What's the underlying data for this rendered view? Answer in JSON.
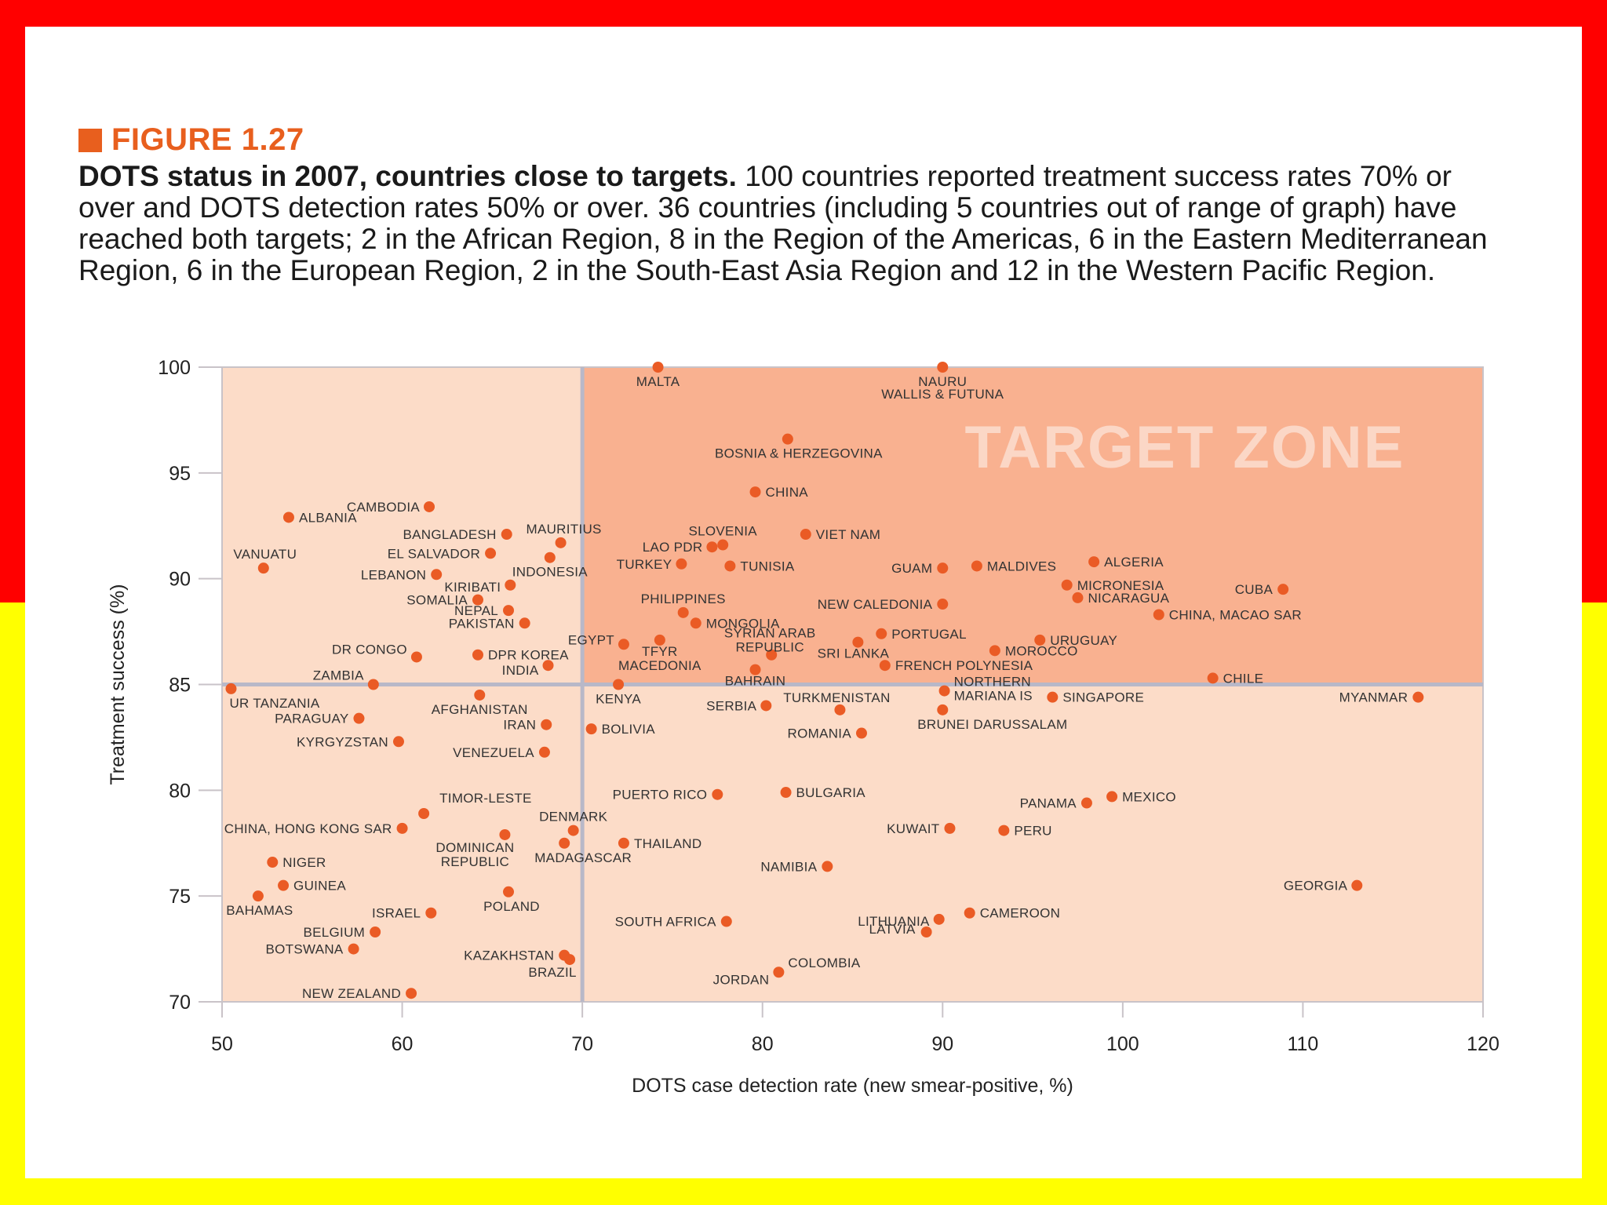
{
  "figure": {
    "label": "FIGURE 1.27",
    "title": "DOTS status in 2007, countries close to targets.",
    "caption": "100 countries reported treatment success rates 70% or over and DOTS detection rates 50% or over. 36 countries (including 5 countries out of range of graph) have reached both targets; 2 in the African Region, 8 in the Region of the Americas, 6 in the Eastern Mediterranean Region, 6 in the European Region, 2 in the South-East Asia Region and 12 in the Western Pacific Region."
  },
  "colors": {
    "frame_top": "#ff0000",
    "frame_bottom": "#ffff00",
    "accent": "#e85f1e",
    "point": "#ea5b25",
    "zone_light": "#fcdcc8",
    "zone_target": "#f9b190",
    "divider": "#b8b8c8"
  },
  "chart_data": {
    "type": "scatter",
    "xlabel": "DOTS case detection rate (new smear-positive, %)",
    "ylabel": "Treatment success (%)",
    "xlim": [
      50,
      120
    ],
    "ylim": [
      70,
      100
    ],
    "xticks": [
      50,
      60,
      70,
      80,
      90,
      100,
      110,
      120
    ],
    "yticks": [
      70,
      75,
      80,
      85,
      90,
      95,
      100
    ],
    "target_x": 70,
    "target_y": 85,
    "target_zone_label": "TARGET ZONE",
    "points": [
      {
        "name": "MALTA",
        "x": 74.2,
        "y": 100.0
      },
      {
        "name": "NAURU",
        "x": 90.0,
        "y": 100.0
      },
      {
        "name": "WALLIS & FUTUNA",
        "x": 90.0,
        "y": 100.0
      },
      {
        "name": "BOSNIA & HERZEGOVINA",
        "x": 81.4,
        "y": 96.6
      },
      {
        "name": "CHINA",
        "x": 79.6,
        "y": 94.1
      },
      {
        "name": "CAMBODIA",
        "x": 61.5,
        "y": 93.4
      },
      {
        "name": "ALBANIA",
        "x": 53.7,
        "y": 92.9
      },
      {
        "name": "BANGLADESH",
        "x": 65.8,
        "y": 92.1
      },
      {
        "name": "MAURITIUS",
        "x": 68.8,
        "y": 91.7
      },
      {
        "name": "SLOVENIA",
        "x": 77.8,
        "y": 91.6
      },
      {
        "name": "VIET NAM",
        "x": 82.4,
        "y": 92.1
      },
      {
        "name": "LAO PDR",
        "x": 77.2,
        "y": 91.5
      },
      {
        "name": "EL SALVADOR",
        "x": 64.9,
        "y": 91.2
      },
      {
        "name": "INDONESIA",
        "x": 68.2,
        "y": 91.0
      },
      {
        "name": "VANUATU",
        "x": 52.3,
        "y": 90.5
      },
      {
        "name": "TURKEY",
        "x": 75.5,
        "y": 90.7
      },
      {
        "name": "TUNISIA",
        "x": 78.2,
        "y": 90.6
      },
      {
        "name": "GUAM",
        "x": 90.0,
        "y": 90.5
      },
      {
        "name": "MALDIVES",
        "x": 91.9,
        "y": 90.6
      },
      {
        "name": "ALGERIA",
        "x": 98.4,
        "y": 90.8
      },
      {
        "name": "LEBANON",
        "x": 61.9,
        "y": 90.2
      },
      {
        "name": "KIRIBATI",
        "x": 66.0,
        "y": 89.7
      },
      {
        "name": "MICRONESIA",
        "x": 96.9,
        "y": 89.7
      },
      {
        "name": "CUBA",
        "x": 108.9,
        "y": 89.5
      },
      {
        "name": "SOMALIA",
        "x": 64.2,
        "y": 89.0
      },
      {
        "name": "PHILIPPINES",
        "x": 75.6,
        "y": 88.4
      },
      {
        "name": "NEW CALEDONIA",
        "x": 90.0,
        "y": 88.8
      },
      {
        "name": "NICARAGUA",
        "x": 97.5,
        "y": 89.1
      },
      {
        "name": "NEPAL",
        "x": 65.9,
        "y": 88.5
      },
      {
        "name": "CHINA, MACAO SAR",
        "x": 102.0,
        "y": 88.3
      },
      {
        "name": "MONGOLIA",
        "x": 76.3,
        "y": 87.9
      },
      {
        "name": "PAKISTAN",
        "x": 66.8,
        "y": 87.9
      },
      {
        "name": "SYRIAN ARAB REPUBLIC",
        "x": 80.5,
        "y": 86.4
      },
      {
        "name": "PORTUGAL",
        "x": 86.6,
        "y": 87.4
      },
      {
        "name": "EGYPT",
        "x": 72.3,
        "y": 86.9
      },
      {
        "name": "TFYR MACEDONIA",
        "x": 74.3,
        "y": 87.1
      },
      {
        "name": "SRI LANKA",
        "x": 85.3,
        "y": 87.0
      },
      {
        "name": "URUGUAY",
        "x": 95.4,
        "y": 87.1
      },
      {
        "name": "MOROCCO",
        "x": 92.9,
        "y": 86.6
      },
      {
        "name": "DR CONGO",
        "x": 60.8,
        "y": 86.3
      },
      {
        "name": "DPR KOREA",
        "x": 64.2,
        "y": 86.4
      },
      {
        "name": "INDIA",
        "x": 68.1,
        "y": 85.9
      },
      {
        "name": "BAHRAIN",
        "x": 79.6,
        "y": 85.7
      },
      {
        "name": "FRENCH POLYNESIA",
        "x": 86.8,
        "y": 85.9
      },
      {
        "name": "CHILE",
        "x": 105.0,
        "y": 85.3
      },
      {
        "name": "ZAMBIA",
        "x": 58.4,
        "y": 85.0
      },
      {
        "name": "KENYA",
        "x": 72.0,
        "y": 85.0
      },
      {
        "name": "UR TANZANIA",
        "x": 50.5,
        "y": 84.8
      },
      {
        "name": "NORTHERN MARIANA IS",
        "x": 90.1,
        "y": 84.7
      },
      {
        "name": "AFGHANISTAN",
        "x": 64.3,
        "y": 84.5
      },
      {
        "name": "SINGAPORE",
        "x": 96.1,
        "y": 84.4
      },
      {
        "name": "MYANMAR",
        "x": 116.4,
        "y": 84.4
      },
      {
        "name": "SERBIA",
        "x": 80.2,
        "y": 84.0
      },
      {
        "name": "TURKMENISTAN",
        "x": 84.3,
        "y": 83.8
      },
      {
        "name": "BRUNEI DARUSSALAM",
        "x": 90.0,
        "y": 83.8
      },
      {
        "name": "PARAGUAY",
        "x": 57.6,
        "y": 83.4
      },
      {
        "name": "IRAN",
        "x": 68.0,
        "y": 83.1
      },
      {
        "name": "BOLIVIA",
        "x": 70.5,
        "y": 82.9
      },
      {
        "name": "ROMANIA",
        "x": 85.5,
        "y": 82.7
      },
      {
        "name": "KYRGYZSTAN",
        "x": 59.8,
        "y": 82.3
      },
      {
        "name": "VENEZUELA",
        "x": 67.9,
        "y": 81.8
      },
      {
        "name": "PUERTO RICO",
        "x": 77.5,
        "y": 79.8
      },
      {
        "name": "BULGARIA",
        "x": 81.3,
        "y": 79.9
      },
      {
        "name": "MEXICO",
        "x": 99.4,
        "y": 79.7
      },
      {
        "name": "PANAMA",
        "x": 98.0,
        "y": 79.4
      },
      {
        "name": "TIMOR-LESTE",
        "x": 61.2,
        "y": 78.9
      },
      {
        "name": "CHINA, HONG KONG SAR",
        "x": 60.0,
        "y": 78.2
      },
      {
        "name": "KUWAIT",
        "x": 90.4,
        "y": 78.2
      },
      {
        "name": "PERU",
        "x": 93.4,
        "y": 78.1
      },
      {
        "name": "DENMARK",
        "x": 69.5,
        "y": 78.1
      },
      {
        "name": "DOMINICAN REPUBLIC",
        "x": 65.7,
        "y": 77.9
      },
      {
        "name": "MADAGASCAR",
        "x": 69.0,
        "y": 77.5
      },
      {
        "name": "THAILAND",
        "x": 72.3,
        "y": 77.5
      },
      {
        "name": "NIGER",
        "x": 52.8,
        "y": 76.6
      },
      {
        "name": "NAMIBIA",
        "x": 83.6,
        "y": 76.4
      },
      {
        "name": "GUINEA",
        "x": 53.4,
        "y": 75.5
      },
      {
        "name": "GEORGIA",
        "x": 113.0,
        "y": 75.5
      },
      {
        "name": "POLAND",
        "x": 65.9,
        "y": 75.2
      },
      {
        "name": "BAHAMAS",
        "x": 52.0,
        "y": 75.0
      },
      {
        "name": "ISRAEL",
        "x": 61.6,
        "y": 74.2
      },
      {
        "name": "CAMEROON",
        "x": 91.5,
        "y": 74.2
      },
      {
        "name": "LITHUANIA",
        "x": 89.8,
        "y": 73.9
      },
      {
        "name": "SOUTH AFRICA",
        "x": 78.0,
        "y": 73.8
      },
      {
        "name": "BELGIUM",
        "x": 58.5,
        "y": 73.3
      },
      {
        "name": "LATVIA",
        "x": 89.1,
        "y": 73.3
      },
      {
        "name": "BOTSWANA",
        "x": 57.3,
        "y": 72.5
      },
      {
        "name": "KAZAKHSTAN",
        "x": 69.0,
        "y": 72.2
      },
      {
        "name": "BRAZIL",
        "x": 69.3,
        "y": 72.0
      },
      {
        "name": "COLOMBIA",
        "x": 80.9,
        "y": 71.4
      },
      {
        "name": "JORDAN",
        "x": 80.9,
        "y": 71.2
      },
      {
        "name": "NEW ZEALAND",
        "x": 60.5,
        "y": 70.4
      }
    ]
  }
}
